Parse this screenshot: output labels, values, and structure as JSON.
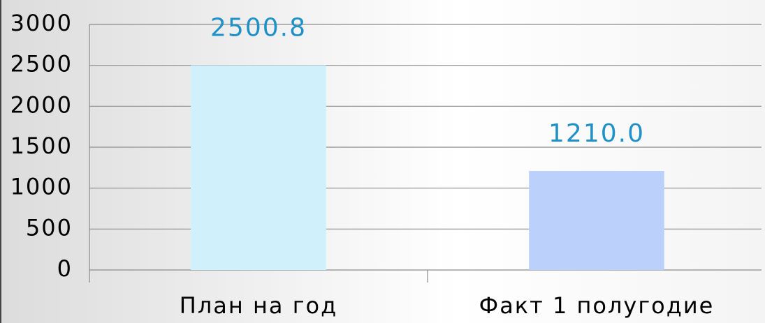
{
  "chart_data": {
    "type": "bar",
    "categories": [
      "План на год",
      "Факт 1 полугодие"
    ],
    "values": [
      2500.8,
      1210
    ],
    "value_labels": [
      "2500.8",
      "1210.0"
    ],
    "colors": [
      "#d0f1fb",
      "#bcd0fc"
    ],
    "label_color": "#1f91c9",
    "ylim": [
      0,
      3000
    ],
    "yticks": [
      0,
      500,
      1000,
      1500,
      2000,
      2500,
      3000
    ],
    "grid": true
  }
}
